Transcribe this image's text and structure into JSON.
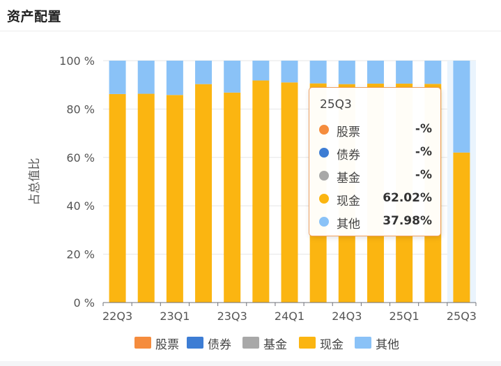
{
  "panel": {
    "title": "资产配置"
  },
  "chart_data": {
    "type": "bar",
    "stacked": true,
    "categories": [
      "22Q3",
      "22Q4",
      "23Q1",
      "23Q2",
      "23Q3",
      "23Q4",
      "24Q1",
      "24Q2",
      "24Q3",
      "24Q4",
      "25Q1",
      "25Q2",
      "25Q3"
    ],
    "x_tick_labels": [
      "22Q3",
      "23Q1",
      "23Q3",
      "24Q1",
      "24Q3",
      "25Q1",
      "25Q3"
    ],
    "ylabel": "占总值比",
    "ylim": [
      0,
      100
    ],
    "y_ticks": [
      "0 %",
      "20 %",
      "40 %",
      "60 %",
      "80 %",
      "100 %"
    ],
    "grid": true,
    "legend_position": "bottom",
    "highlighted_category": "25Q3",
    "series": [
      {
        "name": "股票",
        "color": "#f58c3d",
        "values": [
          0,
          0,
          0,
          0,
          0,
          0,
          0,
          0,
          0,
          0,
          0,
          0,
          0
        ]
      },
      {
        "name": "债券",
        "color": "#3d7dd4",
        "values": [
          0,
          0,
          0,
          0,
          0,
          0,
          0,
          0,
          0,
          0,
          0,
          0,
          0
        ]
      },
      {
        "name": "基金",
        "color": "#a8a8a8",
        "values": [
          0,
          0,
          0,
          0,
          0,
          0,
          0,
          0,
          0,
          0,
          0,
          0,
          0
        ]
      },
      {
        "name": "现金",
        "color": "#fbb511",
        "values": [
          86.2,
          86.3,
          85.8,
          90.3,
          86.8,
          91.8,
          91.0,
          90.6,
          90.3,
          90.5,
          90.5,
          90.4,
          62.02
        ]
      },
      {
        "name": "其他",
        "color": "#8ac2f7",
        "values": [
          13.8,
          13.7,
          14.2,
          9.7,
          13.2,
          8.2,
          9.0,
          9.4,
          9.7,
          9.5,
          9.5,
          9.6,
          37.98
        ]
      }
    ]
  },
  "tooltip": {
    "title": "25Q3",
    "rows": [
      {
        "name": "股票",
        "value": "-%",
        "color": "#f58c3d"
      },
      {
        "name": "债券",
        "value": "-%",
        "color": "#3d7dd4"
      },
      {
        "name": "基金",
        "value": "-%",
        "color": "#a8a8a8"
      },
      {
        "name": "现金",
        "value": "62.02%",
        "color": "#fbb511"
      },
      {
        "name": "其他",
        "value": "37.98%",
        "color": "#8ac2f7"
      }
    ]
  },
  "legend": {
    "items": [
      {
        "name": "股票",
        "color": "#f58c3d"
      },
      {
        "name": "债券",
        "color": "#3d7dd4"
      },
      {
        "name": "基金",
        "color": "#a8a8a8"
      },
      {
        "name": "现金",
        "color": "#fbb511"
      },
      {
        "name": "其他",
        "color": "#8ac2f7"
      }
    ]
  }
}
